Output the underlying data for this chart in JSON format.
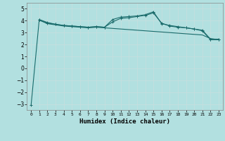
{
  "xlabel": "Humidex (Indice chaleur)",
  "ylabel": "",
  "xlim": [
    -0.5,
    23.5
  ],
  "ylim": [
    -3.5,
    5.5
  ],
  "yticks": [
    -3,
    -2,
    -1,
    0,
    1,
    2,
    3,
    4,
    5
  ],
  "xtick_positions": [
    0,
    1,
    2,
    3,
    4,
    5,
    6,
    7,
    8,
    9,
    10,
    11,
    12,
    13,
    14,
    15,
    16,
    17,
    18,
    19,
    20,
    21,
    22,
    23
  ],
  "xtick_labels": [
    "0",
    "1",
    "2",
    "3",
    "4",
    "5",
    "6",
    "7",
    "8",
    "9",
    "10",
    "11",
    "12",
    "13",
    "14",
    "15",
    "16",
    "17",
    "18",
    "19",
    "20",
    "21",
    "22",
    "23"
  ],
  "bg_color": "#b2e0e0",
  "grid_color": "#d0eaea",
  "line_color": "#1a6b6b",
  "line1_x": [
    0,
    1,
    2,
    3,
    4,
    5,
    6,
    7,
    8,
    9,
    10,
    11,
    12,
    13,
    14,
    15,
    16,
    17,
    18,
    19,
    20,
    21,
    22,
    23
  ],
  "line1_y": [
    -3.1,
    4.1,
    3.85,
    3.7,
    3.6,
    3.55,
    3.5,
    3.45,
    3.5,
    3.45,
    4.1,
    4.3,
    4.35,
    4.4,
    4.5,
    4.75,
    3.75,
    3.6,
    3.5,
    3.4,
    3.3,
    3.2,
    2.45,
    2.45
  ],
  "line2_x": [
    1,
    2,
    3,
    4,
    5,
    6,
    7,
    8,
    9,
    10,
    11,
    12,
    13,
    14,
    15,
    16,
    17,
    18,
    19,
    20,
    21,
    22,
    23
  ],
  "line2_y": [
    4.05,
    3.75,
    3.65,
    3.55,
    3.5,
    3.45,
    3.4,
    3.45,
    3.4,
    3.35,
    3.3,
    3.25,
    3.2,
    3.15,
    3.1,
    3.05,
    3.0,
    2.95,
    2.9,
    2.85,
    2.8,
    2.5,
    2.4
  ],
  "line3_x": [
    1,
    2,
    3,
    4,
    5,
    6,
    7,
    8,
    9,
    10,
    11,
    12,
    13,
    14,
    15,
    16,
    17,
    18,
    19,
    20,
    21,
    22,
    23
  ],
  "line3_y": [
    4.05,
    3.8,
    3.7,
    3.6,
    3.55,
    3.5,
    3.45,
    3.5,
    3.45,
    3.9,
    4.2,
    4.25,
    4.35,
    4.45,
    4.65,
    3.8,
    3.55,
    3.45,
    3.4,
    3.3,
    3.15,
    2.4,
    2.4
  ]
}
